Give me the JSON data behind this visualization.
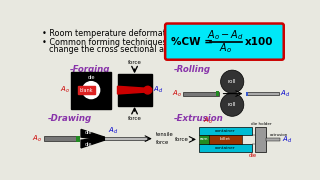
{
  "bg_color": "#e8e8e0",
  "bullet1": "Room temperature deformation.",
  "bullet2a": "Common forming techniques used to",
  "bullet2b": "change the cross sectional area:",
  "formula_bg": "#00e8f8",
  "formula_border": "#cc0000",
  "forging_label": "-Forging",
  "rolling_label": "-Rolling",
  "drawing_label": "-Drawing",
  "extrusion_label": "-Extrusion",
  "label_color": "#8833aa",
  "ao_color": "#cc0000",
  "ad_color": "#0000cc",
  "green_color": "#228B22",
  "cyan_color": "#00bcd4",
  "dark_gray": "#333333",
  "mid_gray": "#777777"
}
